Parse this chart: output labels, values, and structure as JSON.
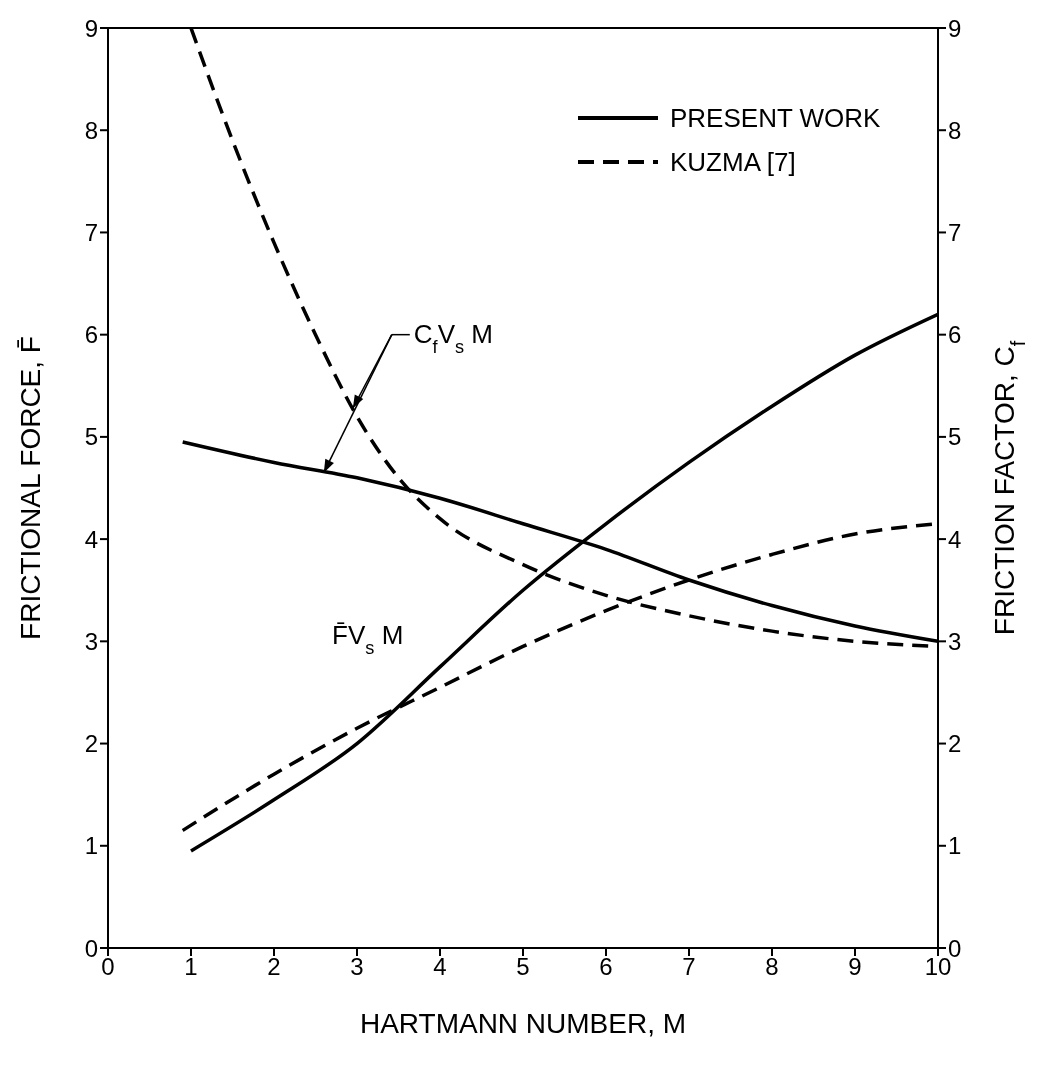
{
  "chart_data": {
    "type": "line",
    "xlabel": "HARTMANN NUMBER, M",
    "ylabel": "FRICTIONAL FORCE, F̄",
    "y2label": "FRICTION FACTOR, C$_{f}$",
    "xlim": [
      0,
      10
    ],
    "xticks": [
      0,
      1,
      2,
      3,
      4,
      5,
      6,
      7,
      8,
      9,
      10
    ],
    "ylim": [
      0,
      9
    ],
    "yticks": [
      0,
      1,
      2,
      3,
      4,
      5,
      6,
      7,
      8,
      9
    ],
    "y2lim": [
      0,
      9
    ],
    "y2ticks": [
      0,
      1,
      2,
      3,
      4,
      5,
      6,
      7,
      8,
      9
    ],
    "legend": "top right",
    "marker": "none",
    "annotations": [
      {
        "text": "C$_{f}$V$_{s}$ M",
        "x": 2.6,
        "y": 4.65
      },
      "F̄V$_{s}$ M"
    ],
    "series": [
      {
        "name": "PRESENT WORK",
        "color": "#000000",
        "axis": "y2",
        "line_style": "solid",
        "x": [
          0.9,
          2,
          3,
          4,
          5,
          6,
          7,
          8,
          9,
          10
        ],
        "values": [
          4.95,
          4.75,
          4.6,
          4.4,
          4.15,
          3.9,
          3.6,
          3.35,
          3.15,
          3.0
        ]
      },
      {
        "name": "KUZMA [7]",
        "color": "#000000",
        "axis": "y2",
        "line_style": "dashed",
        "x": [
          1,
          1.5,
          2,
          2.5,
          3,
          3.5,
          4,
          5,
          6,
          7,
          8,
          9,
          10
        ],
        "values": [
          9.0,
          7.9,
          6.9,
          6.0,
          5.2,
          4.6,
          4.2,
          3.75,
          3.45,
          3.25,
          3.1,
          3.0,
          2.95
        ]
      },
      {
        "color": "#000000",
        "line_style": "solid",
        "x": [
          1,
          2,
          3,
          4,
          5,
          6,
          7,
          8,
          9,
          10
        ],
        "values": [
          0.95,
          1.45,
          2.0,
          2.75,
          3.5,
          4.15,
          4.75,
          5.3,
          5.8,
          6.2
        ]
      },
      {
        "color": "#000000",
        "line_style": "dashed",
        "x": [
          0.9,
          2,
          3,
          4,
          5,
          6,
          7,
          8,
          9,
          10
        ],
        "values": [
          1.15,
          1.7,
          2.15,
          2.55,
          2.95,
          3.3,
          3.6,
          3.85,
          4.05,
          4.15
        ]
      }
    ]
  }
}
